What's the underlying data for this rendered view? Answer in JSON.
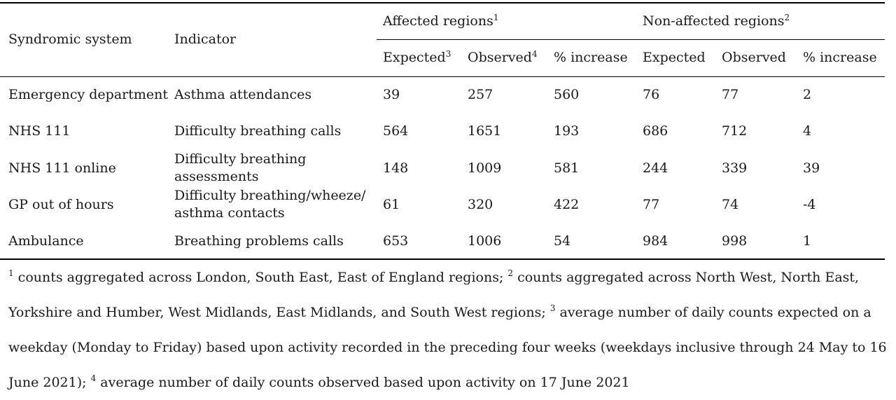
{
  "table": {
    "header": {
      "system": "Syndromic system",
      "indicator": "Indicator",
      "affected_group": "Affected regions",
      "affected_group_sup": "1",
      "nonaffected_group": "Non-affected regions",
      "nonaffected_group_sup": "2",
      "expected_affected": "Expected",
      "expected_affected_sup": "3",
      "observed_affected": "Observed",
      "observed_affected_sup": "4",
      "increase_affected": "% increase",
      "expected_nonaffected": "Expected",
      "observed_nonaffected": "Observed",
      "increase_nonaffected": "% increase"
    },
    "rows": [
      {
        "system": "Emergency department",
        "indicator_l1": "Asthma attendances",
        "indicator_l2": "",
        "a_exp": "39",
        "a_obs": "257",
        "a_inc": "560",
        "n_exp": "76",
        "n_obs": "77",
        "n_inc": "2"
      },
      {
        "system": "NHS 111",
        "indicator_l1": "Difficulty breathing calls",
        "indicator_l2": "",
        "a_exp": "564",
        "a_obs": "1651",
        "a_inc": "193",
        "n_exp": "686",
        "n_obs": "712",
        "n_inc": "4"
      },
      {
        "system": "NHS 111 online",
        "indicator_l1": "Difficulty breathing",
        "indicator_l2": "assessments",
        "a_exp": "148",
        "a_obs": "1009",
        "a_inc": "581",
        "n_exp": "244",
        "n_obs": "339",
        "n_inc": "39"
      },
      {
        "system": "GP out of hours",
        "indicator_l1": "Difficulty breathing/wheeze/",
        "indicator_l2": "asthma contacts",
        "a_exp": "61",
        "a_obs": "320",
        "a_inc": "422",
        "n_exp": "77",
        "n_obs": "74",
        "n_inc": "-4"
      },
      {
        "system": "Ambulance",
        "indicator_l1": "Breathing problems calls",
        "indicator_l2": "",
        "a_exp": "653",
        "a_obs": "1006",
        "a_inc": "54",
        "n_exp": "984",
        "n_obs": "998",
        "n_inc": "1"
      }
    ]
  },
  "footnotes": [
    {
      "sup": "1",
      "text": " counts aggregated across London, South East, East of England regions; "
    },
    {
      "sup": "2",
      "text": " counts aggregated across North West, North East, Yorkshire and Humber, West Midlands, East Midlands, and South West regions; "
    },
    {
      "sup": "3",
      "text": " average number of daily counts expected on a weekday (Monday to Friday) based upon activity recorded in the preceding four weeks (weekdays inclusive through 24 May to 16 June 2021); "
    },
    {
      "sup": "4",
      "text": " average number of daily counts observed based upon activity on 17 June 2021"
    }
  ]
}
